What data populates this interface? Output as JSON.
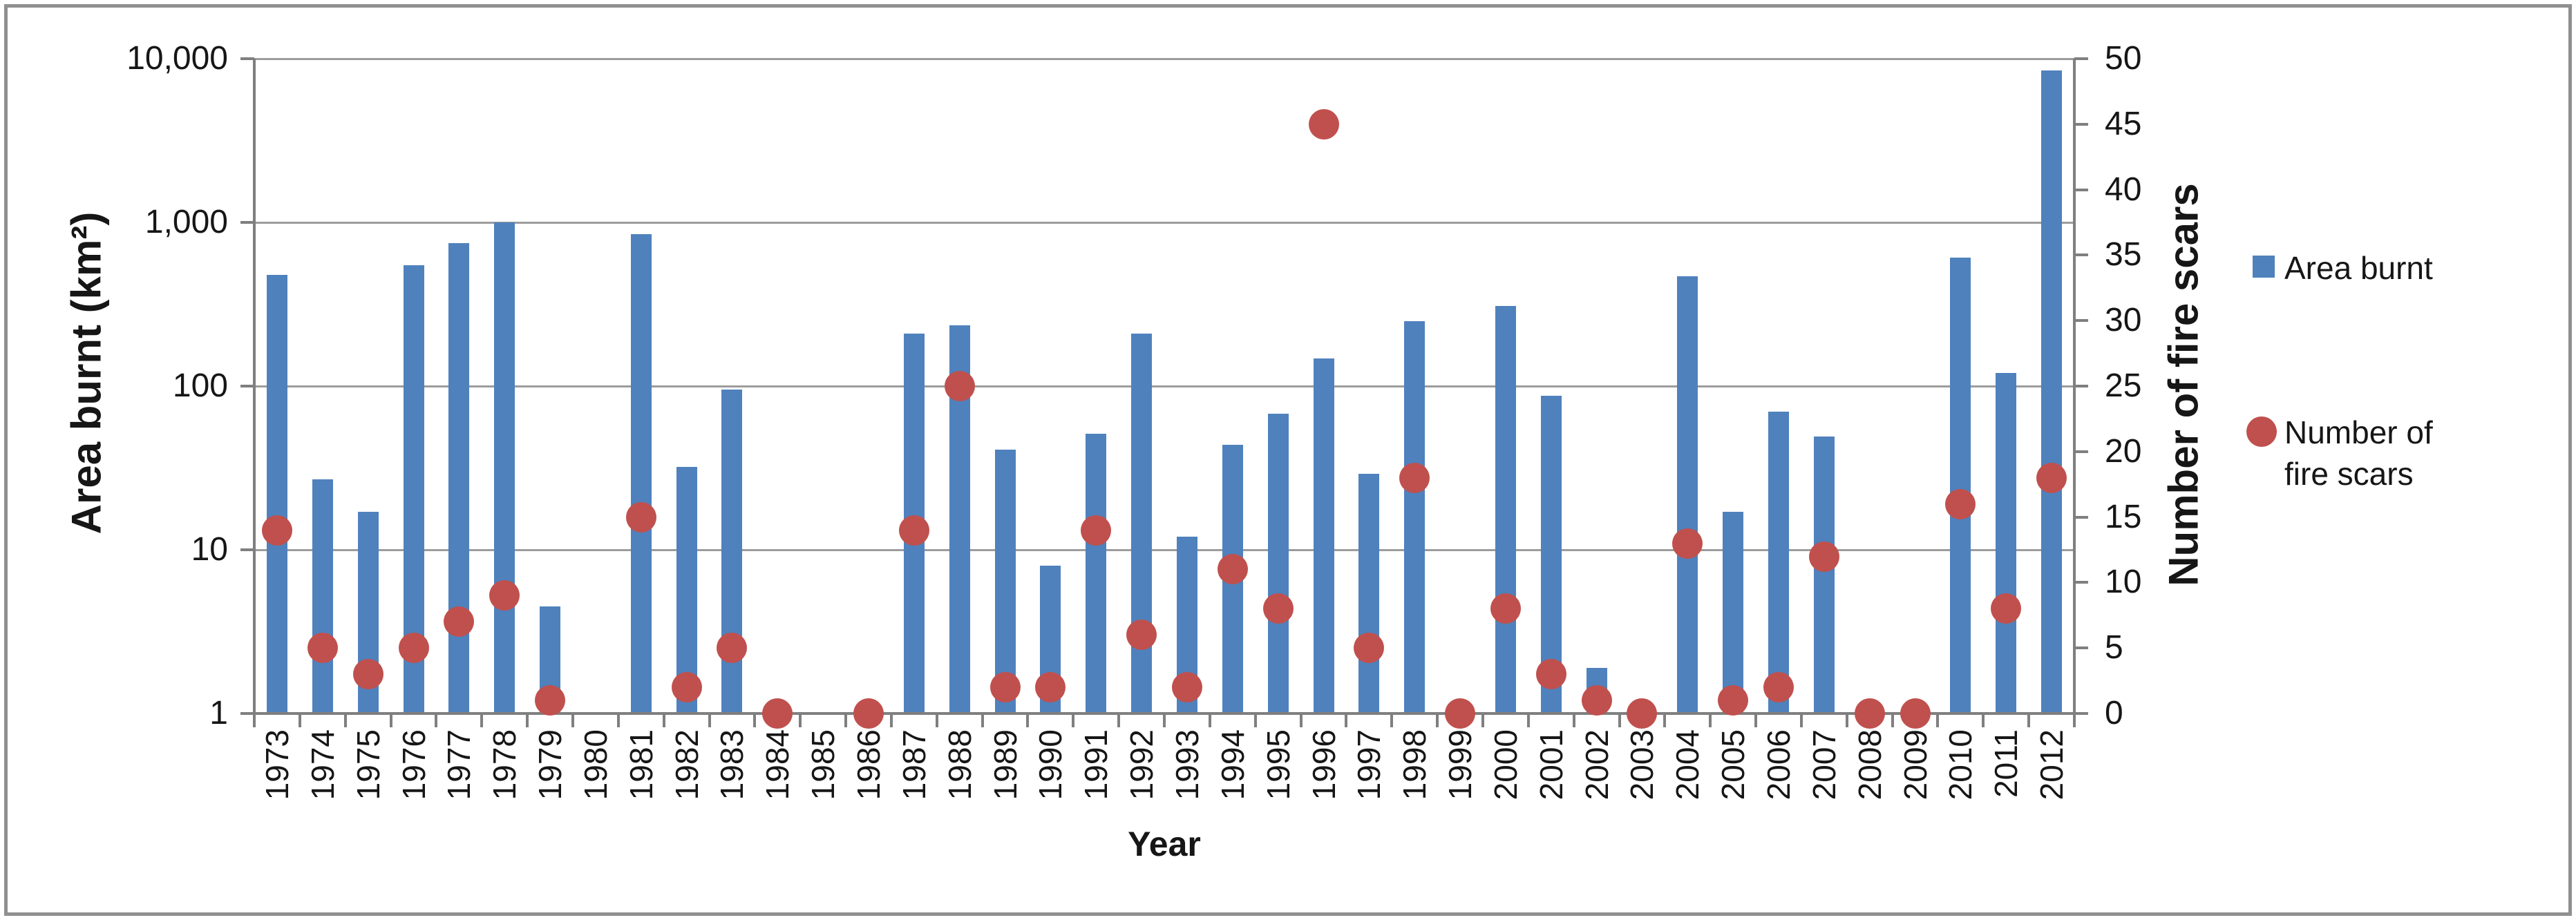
{
  "chart_data": {
    "type": "combo-bar-scatter-dual-axis",
    "categories": [
      1973,
      1974,
      1975,
      1976,
      1977,
      1978,
      1979,
      1980,
      1981,
      1982,
      1983,
      1984,
      1985,
      1986,
      1987,
      1988,
      1989,
      1990,
      1991,
      1992,
      1993,
      1994,
      1995,
      1996,
      1997,
      1998,
      1999,
      2000,
      2001,
      2002,
      2003,
      2004,
      2005,
      2006,
      2007,
      2008,
      2009,
      2010,
      2011,
      2012
    ],
    "series": [
      {
        "name": "Area burnt",
        "type": "bar",
        "axis": "left",
        "color": "#4f81bd",
        "values": [
          480,
          27,
          17,
          550,
          750,
          1000,
          4.5,
          null,
          850,
          32,
          95,
          null,
          null,
          null,
          210,
          235,
          41,
          8,
          51,
          210,
          12,
          44,
          68,
          148,
          29,
          250,
          null,
          310,
          87,
          1.9,
          null,
          470,
          17,
          70,
          49,
          null,
          null,
          610,
          120,
          8500
        ]
      },
      {
        "name": "Number of fire scars",
        "type": "scatter",
        "axis": "right",
        "color": "#c0504d",
        "values": [
          14,
          5,
          3,
          5,
          7,
          9,
          1,
          null,
          15,
          2,
          5,
          0,
          null,
          0,
          14,
          25,
          2,
          2,
          14,
          6,
          2,
          11,
          8,
          45,
          5,
          18,
          0,
          8,
          3,
          1,
          0,
          13,
          1,
          2,
          12,
          0,
          0,
          16,
          8,
          18
        ]
      }
    ],
    "left_axis": {
      "scale": "log",
      "title": "Area burnt (km²)",
      "range": [
        1,
        10000
      ],
      "ticks": [
        {
          "value": 1,
          "label": "1"
        },
        {
          "value": 10,
          "label": "10"
        },
        {
          "value": 100,
          "label": "100"
        },
        {
          "value": 1000,
          "label": "1,000"
        },
        {
          "value": 10000,
          "label": "10,000"
        }
      ]
    },
    "right_axis": {
      "scale": "linear",
      "title": "Number of fire scars",
      "min": 0,
      "max": 50,
      "step": 5
    },
    "x_axis": {
      "title": "Year"
    },
    "legend": [
      {
        "label": "Area burnt",
        "marker": "square",
        "color": "#4f81bd"
      },
      {
        "label": "Number of fire scars",
        "marker": "circle",
        "color": "#c0504d"
      }
    ],
    "grid": "horizontal",
    "gridline_color": "#9c9c9c",
    "axis_color": "#7f7f7f"
  }
}
